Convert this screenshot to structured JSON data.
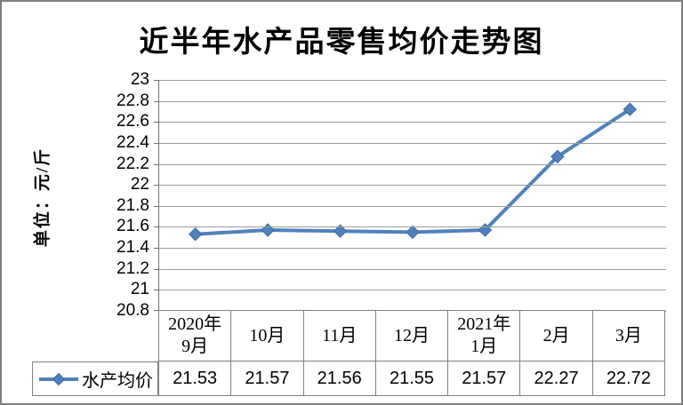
{
  "window": {
    "background": "#ffffff",
    "border_color": "#7f7f7f"
  },
  "title": "近半年水产品零售均价走势图",
  "y_axis": {
    "unit_label": "单位：元/斤",
    "ticks": [
      "23",
      "22.8",
      "22.6",
      "22.4",
      "22.2",
      "22",
      "21.8",
      "21.6",
      "21.4",
      "21.2",
      "21",
      "20.8"
    ]
  },
  "legend": {
    "series_label": "水产均价"
  },
  "table": {
    "headers": [
      "2020年\n9月",
      "10月",
      "11月",
      "12月",
      "2021年\n1月",
      "2月",
      "3月"
    ],
    "values": [
      "21.53",
      "21.57",
      "21.56",
      "21.55",
      "21.57",
      "22.27",
      "22.72"
    ]
  },
  "chart_data": {
    "type": "line",
    "categories": [
      "2020年9月",
      "10月",
      "11月",
      "12月",
      "2021年1月",
      "2月",
      "3月"
    ],
    "series": [
      {
        "name": "水产均价",
        "values": [
          21.53,
          21.57,
          21.56,
          21.55,
          21.57,
          22.27,
          22.72
        ]
      }
    ],
    "title": "近半年水产品零售均价走势图",
    "xlabel": "",
    "ylabel": "单位：元/斤",
    "ylim": [
      20.8,
      23
    ],
    "y_tick_step": 0.2,
    "grid": true,
    "legend_position": "bottom-left",
    "line_color": "#4F81BD",
    "marker": "diamond",
    "marker_edge_color": "#3f6aa3",
    "gridline_color": "#9d9d9d",
    "axis_color": "#6f6f6f",
    "table_border_color": "#808080"
  }
}
